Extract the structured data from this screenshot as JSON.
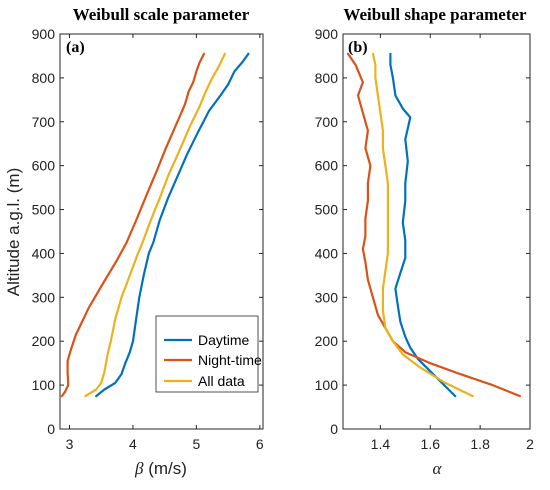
{
  "chart_data": [
    {
      "type": "line",
      "title": "Weibull scale parameter",
      "panel_label": "(a)",
      "xlabel_symbol": "β",
      "xlabel_unit": " (m/s)",
      "ylabel": "Altitude a.g.l. (m)",
      "xlim": [
        2.85,
        6.05
      ],
      "ylim": [
        0,
        900
      ],
      "xticks": [
        3,
        4,
        5,
        6
      ],
      "yticks": [
        0,
        100,
        200,
        300,
        400,
        500,
        600,
        700,
        800,
        900
      ],
      "grid": false,
      "legend": {
        "position": "bottom-right",
        "entries": [
          "Daytime",
          "Night-time",
          "All data"
        ]
      },
      "series": [
        {
          "name": "Daytime",
          "color": "#0072BD",
          "points": [
            [
              3.42,
              75
            ],
            [
              3.55,
              90
            ],
            [
              3.72,
              105
            ],
            [
              3.82,
              125
            ],
            [
              3.88,
              150
            ],
            [
              3.95,
              175
            ],
            [
              4.0,
              200
            ],
            [
              4.05,
              250
            ],
            [
              4.1,
              300
            ],
            [
              4.17,
              350
            ],
            [
              4.25,
              400
            ],
            [
              4.32,
              425
            ],
            [
              4.42,
              475
            ],
            [
              4.55,
              525
            ],
            [
              4.7,
              575
            ],
            [
              4.85,
              625
            ],
            [
              5.02,
              675
            ],
            [
              5.2,
              725
            ],
            [
              5.38,
              760
            ],
            [
              5.5,
              785
            ],
            [
              5.6,
              815
            ],
            [
              5.72,
              835
            ],
            [
              5.82,
              855
            ]
          ]
        },
        {
          "name": "Night-time",
          "color": "#D95319",
          "points": [
            [
              2.88,
              75
            ],
            [
              2.93,
              85
            ],
            [
              2.98,
              100
            ],
            [
              2.97,
              130
            ],
            [
              2.97,
              155
            ],
            [
              3.02,
              180
            ],
            [
              3.1,
              215
            ],
            [
              3.2,
              245
            ],
            [
              3.3,
              275
            ],
            [
              3.5,
              325
            ],
            [
              3.75,
              385
            ],
            [
              3.9,
              425
            ],
            [
              4.05,
              475
            ],
            [
              4.22,
              535
            ],
            [
              4.38,
              590
            ],
            [
              4.52,
              640
            ],
            [
              4.7,
              700
            ],
            [
              4.82,
              740
            ],
            [
              4.88,
              770
            ],
            [
              4.95,
              790
            ],
            [
              5.0,
              815
            ],
            [
              5.05,
              835
            ],
            [
              5.12,
              855
            ]
          ]
        },
        {
          "name": "All data",
          "color": "#EDB120",
          "points": [
            [
              3.25,
              75
            ],
            [
              3.42,
              90
            ],
            [
              3.5,
              105
            ],
            [
              3.55,
              130
            ],
            [
              3.6,
              170
            ],
            [
              3.65,
              200
            ],
            [
              3.72,
              250
            ],
            [
              3.82,
              300
            ],
            [
              3.95,
              350
            ],
            [
              4.08,
              400
            ],
            [
              4.15,
              425
            ],
            [
              4.28,
              475
            ],
            [
              4.42,
              525
            ],
            [
              4.55,
              575
            ],
            [
              4.72,
              630
            ],
            [
              4.9,
              690
            ],
            [
              5.05,
              735
            ],
            [
              5.15,
              770
            ],
            [
              5.25,
              800
            ],
            [
              5.35,
              825
            ],
            [
              5.45,
              855
            ]
          ]
        }
      ]
    },
    {
      "type": "line",
      "title": "Weibull shape parameter",
      "panel_label": "(b)",
      "xlabel_symbol": "α",
      "xlabel_unit": "",
      "ylabel": "",
      "xlim": [
        1.25,
        2.0
      ],
      "ylim": [
        0,
        900
      ],
      "xticks": [
        1.4,
        1.6,
        1.8,
        2
      ],
      "yticks": [
        0,
        100,
        200,
        300,
        400,
        500,
        600,
        700,
        800,
        900
      ],
      "grid": false,
      "series": [
        {
          "name": "Daytime",
          "color": "#0072BD",
          "points": [
            [
              1.7,
              75
            ],
            [
              1.62,
              120
            ],
            [
              1.55,
              160
            ],
            [
              1.52,
              185
            ],
            [
              1.5,
              210
            ],
            [
              1.48,
              245
            ],
            [
              1.47,
              280
            ],
            [
              1.46,
              320
            ],
            [
              1.48,
              355
            ],
            [
              1.5,
              390
            ],
            [
              1.5,
              430
            ],
            [
              1.49,
              470
            ],
            [
              1.5,
              520
            ],
            [
              1.5,
              560
            ],
            [
              1.51,
              610
            ],
            [
              1.5,
              660
            ],
            [
              1.52,
              710
            ],
            [
              1.49,
              730
            ],
            [
              1.46,
              760
            ],
            [
              1.45,
              800
            ],
            [
              1.44,
              830
            ],
            [
              1.44,
              855
            ]
          ]
        },
        {
          "name": "Night-time",
          "color": "#D95319",
          "points": [
            [
              1.96,
              75
            ],
            [
              1.85,
              100
            ],
            [
              1.72,
              125
            ],
            [
              1.6,
              150
            ],
            [
              1.5,
              175
            ],
            [
              1.45,
              200
            ],
            [
              1.42,
              230
            ],
            [
              1.39,
              260
            ],
            [
              1.37,
              300
            ],
            [
              1.35,
              340
            ],
            [
              1.34,
              380
            ],
            [
              1.33,
              410
            ],
            [
              1.34,
              440
            ],
            [
              1.34,
              480
            ],
            [
              1.35,
              520
            ],
            [
              1.35,
              560
            ],
            [
              1.36,
              600
            ],
            [
              1.34,
              640
            ],
            [
              1.35,
              680
            ],
            [
              1.33,
              720
            ],
            [
              1.31,
              760
            ],
            [
              1.33,
              790
            ],
            [
              1.3,
              830
            ],
            [
              1.27,
              855
            ]
          ]
        },
        {
          "name": "All data",
          "color": "#EDB120",
          "points": [
            [
              1.77,
              75
            ],
            [
              1.66,
              105
            ],
            [
              1.56,
              140
            ],
            [
              1.49,
              170
            ],
            [
              1.45,
              200
            ],
            [
              1.42,
              230
            ],
            [
              1.41,
              270
            ],
            [
              1.41,
              320
            ],
            [
              1.42,
              360
            ],
            [
              1.43,
              400
            ],
            [
              1.43,
              440
            ],
            [
              1.43,
              480
            ],
            [
              1.43,
              520
            ],
            [
              1.43,
              560
            ],
            [
              1.42,
              600
            ],
            [
              1.41,
              640
            ],
            [
              1.41,
              680
            ],
            [
              1.4,
              720
            ],
            [
              1.39,
              760
            ],
            [
              1.38,
              800
            ],
            [
              1.38,
              830
            ],
            [
              1.37,
              855
            ]
          ]
        }
      ]
    }
  ]
}
